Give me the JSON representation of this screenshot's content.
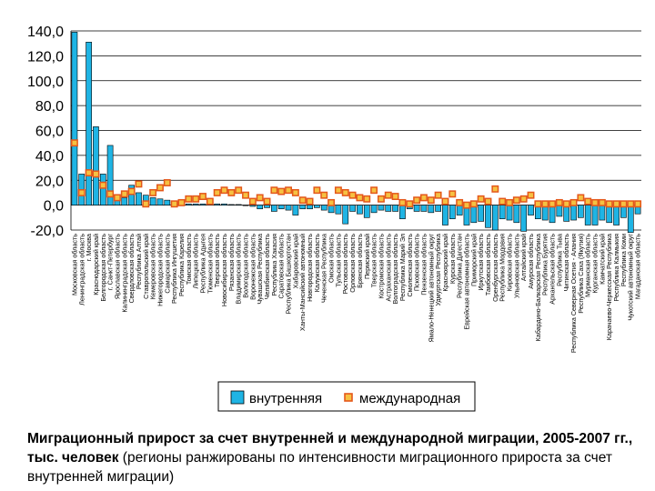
{
  "chart_data": {
    "type": "bar",
    "title": "",
    "xlabel": "",
    "ylabel": "",
    "ylim": [
      -20,
      140
    ],
    "yticks": [
      "140,0",
      "120,0",
      "100,0",
      "80,0",
      "60,0",
      "40,0",
      "20,0",
      "0,0",
      "-20,0"
    ],
    "grid": "horizontal",
    "legend_position": "bottom",
    "categories": [
      "Московская область",
      "Ленинградская область",
      "г. Москва",
      "Краснодарский край",
      "Белгородская область",
      "г. Санкт-Петербург",
      "Ярославская область",
      "Калининградская область",
      "Свердловская область",
      "Республика Алтай",
      "Ставропольский край",
      "Кемеровская область",
      "Нижегородская область",
      "Самарская область",
      "Республика Ингушетия",
      "Республика Карелия",
      "Томская область",
      "Липецкая область",
      "Республика Адыгея",
      "Тюменская область",
      "Тверская область",
      "Новосибирская область",
      "Рязанская область",
      "Владимирская область",
      "Вологодская область",
      "Воронежская область",
      "Чувашская Республика",
      "Челябинская область",
      "Республика Хакасия",
      "Саратовская область",
      "Республика Башкортостан",
      "Хабаровский край",
      "Ханты-Мансийский автономный",
      "Новгородская область",
      "Калужская область",
      "Чеченская Республика",
      "Омская область",
      "Тульская область",
      "Ростовская область",
      "Орловская область",
      "Брянская область",
      "Пермский край",
      "Тверская область",
      "Костромская область",
      "Астраханская область",
      "Волгоградская область",
      "Республика Марий Эл",
      "Смоленская область",
      "Псковская область",
      "Пензенская область",
      "Ямало-Ненецкий автономный округ",
      "Удмуртская Республика",
      "Красноярский край",
      "Курская область",
      "Республика Дагестан",
      "Еврейская автономная область",
      "Приморский край",
      "Иркутская область",
      "Тамбовская область",
      "Оренбургская область",
      "Республика Мордовия",
      "Кировская область",
      "Ульяновская область",
      "Алтайский край",
      "Амурская область",
      "Кабардино-Балкарская Республика",
      "Республика Бурятия",
      "Архангельская область",
      "Республика Тыва",
      "Читинская область",
      "Республика Северная Осетия - Алания",
      "Республика Саха (Якутия)",
      "Мурманская область",
      "Курганская область",
      "Камчатский край",
      "Карачаево-Черкесская Республика",
      "Республика Калмыкия",
      "Республика Коми",
      "Чукотский автономный округ",
      "Магаданская область"
    ],
    "series": [
      {
        "name": "внутренняя",
        "color": "#1fb4e4",
        "values": [
          139,
          25,
          131,
          63,
          25,
          48,
          8,
          6,
          16,
          10,
          8,
          6,
          5,
          4,
          1,
          1,
          1,
          1,
          1,
          1,
          1,
          1,
          0.5,
          0.5,
          0,
          -1,
          -3,
          -2,
          -5,
          -3,
          -4,
          -8,
          -3,
          -3,
          -2,
          -4,
          -6,
          -7,
          -15,
          -5,
          -7,
          -10,
          -6,
          -4,
          -5,
          -5,
          -11,
          -3,
          -5,
          -5,
          -6,
          -5,
          -16,
          -11,
          -8,
          -16,
          -14,
          -13,
          -18,
          -20,
          -11,
          -12,
          -14,
          -21,
          -8,
          -11,
          -12,
          -14,
          -9,
          -13,
          -12,
          -10,
          -16,
          -16,
          -12,
          -14,
          -16,
          -10,
          -22,
          -7
        ]
      },
      {
        "name": "международная",
        "color": "#f2a33a",
        "values": [
          50,
          10,
          26,
          25,
          16,
          9,
          6,
          9,
          11,
          17,
          1,
          10,
          14,
          18,
          1,
          2,
          5,
          5,
          7,
          3,
          10,
          12,
          10,
          12,
          8,
          3,
          6,
          3,
          12,
          11,
          12,
          10,
          4,
          3,
          12,
          8,
          2,
          12,
          10,
          8,
          6,
          5,
          12,
          5,
          8,
          7,
          2,
          1,
          4,
          6,
          4,
          8,
          3,
          9,
          2,
          0,
          1,
          5,
          3,
          13,
          3,
          2,
          4,
          5,
          8,
          1,
          1,
          1,
          2,
          1,
          2,
          6,
          3,
          2,
          2,
          1,
          1,
          1,
          1,
          1
        ]
      }
    ]
  },
  "legend": {
    "internal_label": "внутренняя",
    "international_label": "международная"
  },
  "caption": {
    "bold": "Миграционный прирост за счет внутренней и международной миграции, 2005-2007 гг., тыс. человек",
    "normal": " (регионы ранжированы по интенсивности миграционного прироста за счет внутренней миграции)"
  }
}
